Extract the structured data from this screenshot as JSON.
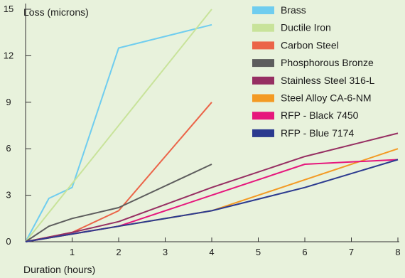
{
  "chart_data": {
    "type": "line",
    "ylabel": "Loss (microns)",
    "xlabel": "Duration (hours)",
    "xlim": [
      0,
      8
    ],
    "ylim": [
      0,
      16
    ],
    "x_ticks": [
      1,
      2,
      3,
      4,
      5,
      6,
      7,
      8
    ],
    "y_ticks": [
      0,
      3,
      6,
      9,
      12,
      15
    ],
    "grid": false,
    "legend_position": "top-right",
    "series": [
      {
        "name": "Brass",
        "color": "#6fcdef",
        "points": [
          [
            0,
            0
          ],
          [
            0.5,
            2.8
          ],
          [
            1,
            3.5
          ],
          [
            2,
            12.5
          ],
          [
            4,
            14
          ]
        ]
      },
      {
        "name": "Ductile Iron",
        "color": "#c8e39a",
        "points": [
          [
            0,
            0
          ],
          [
            4,
            15
          ]
        ]
      },
      {
        "name": "Carbon Steel",
        "color": "#eb6448",
        "points": [
          [
            0,
            0
          ],
          [
            0.5,
            0.3
          ],
          [
            1,
            0.6
          ],
          [
            2,
            2
          ],
          [
            4,
            9
          ]
        ]
      },
      {
        "name": "Phosphorous Bronze",
        "color": "#5d5d5d",
        "points": [
          [
            0,
            0
          ],
          [
            0.5,
            1
          ],
          [
            1,
            1.5
          ],
          [
            2,
            2.2
          ],
          [
            4,
            5
          ]
        ]
      },
      {
        "name": "Stainless Steel 316-L",
        "color": "#962f62",
        "points": [
          [
            0,
            0
          ],
          [
            1,
            0.6
          ],
          [
            2,
            1.3
          ],
          [
            4,
            3.5
          ],
          [
            6,
            5.5
          ],
          [
            8,
            7
          ]
        ]
      },
      {
        "name": "Steel Alloy CA-6-NM",
        "color": "#f39a23",
        "points": [
          [
            0,
            0
          ],
          [
            1,
            0.5
          ],
          [
            2,
            1
          ],
          [
            4,
            2
          ],
          [
            8,
            6
          ]
        ]
      },
      {
        "name": "RFP - Black 7450",
        "color": "#e6167c",
        "points": [
          [
            0,
            0
          ],
          [
            1,
            0.5
          ],
          [
            2,
            1
          ],
          [
            4,
            3
          ],
          [
            6,
            5
          ],
          [
            8,
            5.3
          ]
        ]
      },
      {
        "name": "RFP - Blue 7174",
        "color": "#2b3a8f",
        "points": [
          [
            0,
            0
          ],
          [
            1,
            0.5
          ],
          [
            2,
            1
          ],
          [
            4,
            2
          ],
          [
            6,
            3.5
          ],
          [
            8,
            5.3
          ]
        ]
      }
    ]
  }
}
